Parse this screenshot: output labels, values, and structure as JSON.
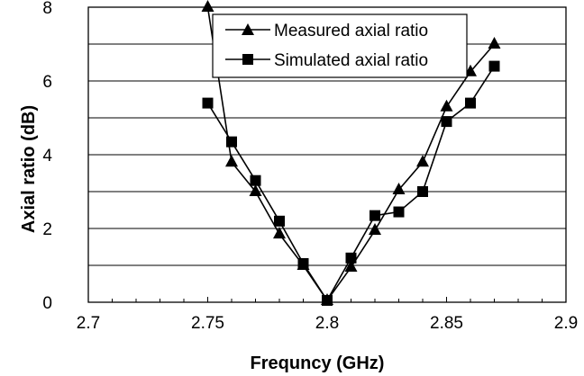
{
  "chart_data": {
    "type": "line",
    "xlabel": "Frequncy (GHz)",
    "ylabel": "Axial ratio (dB)",
    "xlim": [
      2.7,
      2.9
    ],
    "ylim": [
      0,
      8
    ],
    "x_ticks": [
      "2.7",
      "2.75",
      "2.8",
      "2.85",
      "2.9"
    ],
    "y_ticks": [
      "0",
      "2",
      "4",
      "6",
      "8"
    ],
    "grid": "horizontal",
    "legend_position": "top-right",
    "series": [
      {
        "name": "Measured axial ratio",
        "marker": "triangle",
        "x": [
          2.75,
          2.76,
          2.77,
          2.78,
          2.79,
          2.8,
          2.81,
          2.82,
          2.83,
          2.84,
          2.85,
          2.86,
          2.87
        ],
        "y": [
          8.0,
          3.8,
          3.0,
          1.85,
          1.0,
          0.05,
          0.95,
          1.95,
          3.05,
          3.8,
          5.3,
          6.25,
          7.0
        ]
      },
      {
        "name": "Simulated axial ratio",
        "marker": "square",
        "x": [
          2.75,
          2.76,
          2.77,
          2.78,
          2.79,
          2.8,
          2.81,
          2.82,
          2.83,
          2.84,
          2.85,
          2.86,
          2.87
        ],
        "y": [
          5.4,
          4.35,
          3.3,
          2.2,
          1.05,
          0.05,
          1.2,
          2.35,
          2.45,
          3.0,
          4.9,
          5.4,
          6.4
        ]
      }
    ]
  }
}
